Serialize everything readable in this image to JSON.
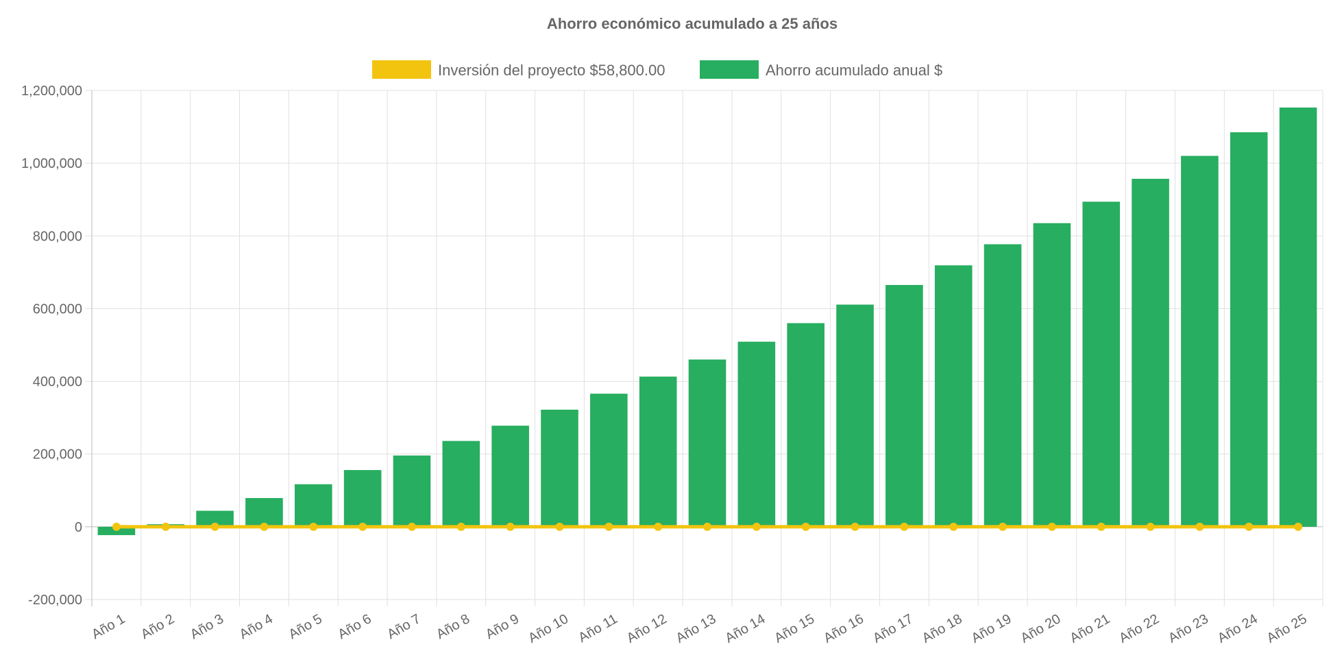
{
  "chart_data": {
    "type": "bar",
    "title": "Ahorro económico acumulado a 25 años",
    "categories": [
      "Año 1",
      "Año 2",
      "Año 3",
      "Año 4",
      "Año 5",
      "Año 6",
      "Año 7",
      "Año 8",
      "Año 9",
      "Año 10",
      "Año 11",
      "Año 12",
      "Año 13",
      "Año 14",
      "Año 15",
      "Año 16",
      "Año 17",
      "Año 18",
      "Año 19",
      "Año 20",
      "Año 21",
      "Año 22",
      "Año 23",
      "Año 24",
      "Año 25"
    ],
    "series": [
      {
        "name": "Inversión del proyecto $58,800.00",
        "type": "line",
        "color": "#f2c40f",
        "values": [
          0,
          0,
          0,
          0,
          0,
          0,
          0,
          0,
          0,
          0,
          0,
          0,
          0,
          0,
          0,
          0,
          0,
          0,
          0,
          0,
          0,
          0,
          0,
          0,
          0
        ]
      },
      {
        "name": "Ahorro acumulado anual $",
        "type": "bar",
        "color": "#27ae60",
        "values": [
          -23000,
          7000,
          44000,
          79000,
          117000,
          156000,
          196000,
          236000,
          278000,
          322000,
          366000,
          413000,
          460000,
          509000,
          560000,
          611000,
          665000,
          719000,
          777000,
          835000,
          894000,
          957000,
          1020000,
          1085000,
          1153000
        ]
      }
    ],
    "ylim": [
      -200000,
      1200000
    ],
    "yticks": [
      "1,200,000",
      "1,000,000",
      "800,000",
      "600,000",
      "400,000",
      "200,000",
      "0",
      "-200,000"
    ],
    "ytick_values": [
      1200000,
      1000000,
      800000,
      600000,
      400000,
      200000,
      0,
      -200000
    ],
    "grid": true,
    "legend": "top"
  }
}
